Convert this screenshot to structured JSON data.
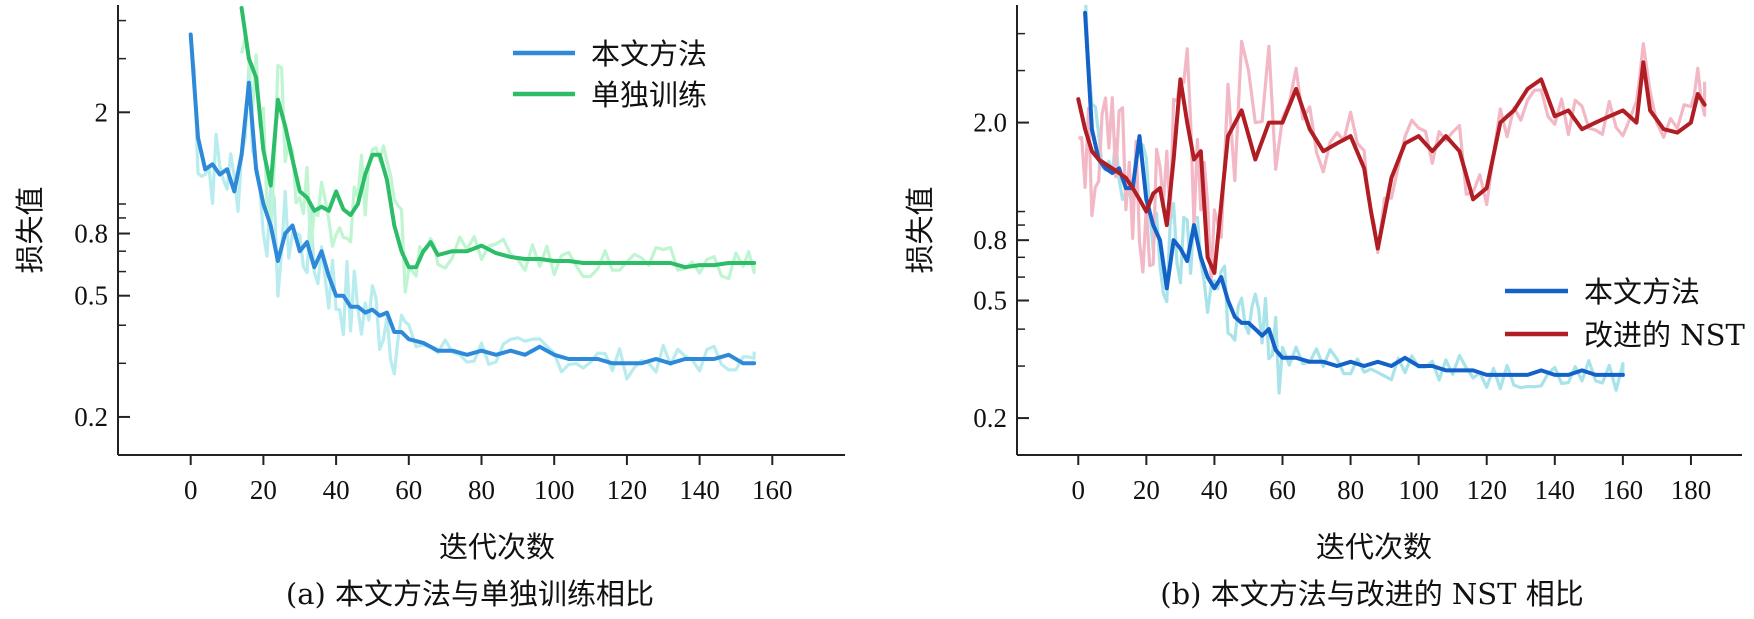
{
  "chart_data": [
    {
      "type": "line",
      "caption": "(a) 本文方法与单独训练相比",
      "xlabel": "迭代次数",
      "ylabel": "损失值",
      "yscale": "log",
      "xlim": [
        -20,
        180
      ],
      "ylim": [
        0.15,
        4.5
      ],
      "xticks": [
        "0",
        "20",
        "40",
        "60",
        "80",
        "100",
        "120",
        "140",
        "160"
      ],
      "xtick_values": [
        0,
        20,
        40,
        60,
        80,
        100,
        120,
        140,
        160
      ],
      "yticks": [
        "0.2",
        "0.5",
        "0.8",
        "2"
      ],
      "ytick_values": [
        0.2,
        0.5,
        0.8,
        2.0
      ],
      "legend_position": "top-right",
      "series": [
        {
          "name": "本文方法",
          "color": "#2e8ad8",
          "raw_color": "#b8ecef",
          "x": [
            0,
            2,
            4,
            6,
            8,
            10,
            12,
            14,
            16,
            18,
            20,
            22,
            24,
            26,
            28,
            30,
            32,
            34,
            36,
            38,
            40,
            42,
            44,
            46,
            48,
            50,
            52,
            54,
            56,
            58,
            60,
            64,
            68,
            72,
            76,
            80,
            84,
            88,
            92,
            96,
            100,
            104,
            108,
            112,
            116,
            120,
            124,
            128,
            132,
            136,
            140,
            144,
            148,
            152,
            155
          ],
          "y": [
            3.6,
            1.65,
            1.3,
            1.35,
            1.25,
            1.3,
            1.1,
            1.45,
            2.5,
            1.3,
            1.0,
            0.85,
            0.65,
            0.8,
            0.85,
            0.7,
            0.75,
            0.62,
            0.7,
            0.58,
            0.5,
            0.5,
            0.46,
            0.46,
            0.44,
            0.45,
            0.43,
            0.44,
            0.38,
            0.38,
            0.36,
            0.35,
            0.33,
            0.33,
            0.32,
            0.33,
            0.32,
            0.33,
            0.32,
            0.34,
            0.32,
            0.31,
            0.31,
            0.31,
            0.3,
            0.3,
            0.3,
            0.31,
            0.3,
            0.31,
            0.31,
            0.31,
            0.32,
            0.3,
            0.3
          ]
        },
        {
          "name": "单独训练",
          "color": "#2dbd68",
          "raw_color": "#bff5d0",
          "x": [
            14,
            16,
            18,
            20,
            22,
            24,
            26,
            28,
            30,
            32,
            34,
            36,
            38,
            40,
            42,
            44,
            46,
            48,
            50,
            52,
            54,
            56,
            58,
            60,
            62,
            64,
            66,
            68,
            72,
            76,
            80,
            84,
            88,
            92,
            96,
            100,
            104,
            108,
            112,
            116,
            120,
            124,
            128,
            132,
            136,
            140,
            144,
            148,
            152,
            155
          ],
          "y": [
            4.4,
            3.0,
            2.6,
            1.5,
            1.15,
            2.2,
            1.8,
            1.4,
            1.1,
            1.05,
            0.95,
            0.98,
            0.95,
            1.1,
            0.96,
            0.92,
            1.0,
            1.25,
            1.45,
            1.45,
            1.2,
            0.85,
            0.7,
            0.62,
            0.62,
            0.7,
            0.75,
            0.68,
            0.7,
            0.7,
            0.73,
            0.69,
            0.67,
            0.66,
            0.66,
            0.65,
            0.65,
            0.64,
            0.64,
            0.64,
            0.64,
            0.64,
            0.64,
            0.64,
            0.62,
            0.63,
            0.63,
            0.64,
            0.64,
            0.64
          ]
        }
      ]
    },
    {
      "type": "line",
      "caption": "(b) 本文方法与改进的 NST 相比",
      "xlabel": "迭代次数",
      "ylabel": "损失值",
      "yscale": "log",
      "xlim": [
        -18,
        195
      ],
      "ylim": [
        0.15,
        5.0
      ],
      "xticks": [
        "0",
        "20",
        "40",
        "60",
        "80",
        "100",
        "120",
        "140",
        "160",
        "180"
      ],
      "xtick_values": [
        0,
        20,
        40,
        60,
        80,
        100,
        120,
        140,
        160,
        180
      ],
      "yticks": [
        "0.2",
        "0.5",
        "0.8",
        "2.0"
      ],
      "ytick_values": [
        0.2,
        0.5,
        0.8,
        2.0
      ],
      "legend_position": "right",
      "series": [
        {
          "name": "本文方法",
          "color": "#1462c8",
          "raw_color": "#a9e3ea",
          "x": [
            2,
            4,
            6,
            8,
            10,
            12,
            14,
            16,
            18,
            20,
            22,
            24,
            26,
            28,
            30,
            32,
            34,
            36,
            38,
            40,
            42,
            44,
            46,
            48,
            50,
            52,
            54,
            56,
            58,
            60,
            64,
            68,
            72,
            76,
            80,
            84,
            88,
            92,
            96,
            100,
            104,
            108,
            112,
            116,
            120,
            124,
            128,
            132,
            136,
            140,
            144,
            148,
            152,
            156,
            160
          ],
          "y": [
            4.7,
            1.9,
            1.5,
            1.4,
            1.35,
            1.4,
            1.2,
            1.2,
            1.8,
            1.1,
            0.9,
            0.8,
            0.55,
            0.8,
            0.75,
            0.68,
            0.9,
            0.7,
            0.6,
            0.55,
            0.6,
            0.5,
            0.44,
            0.42,
            0.42,
            0.4,
            0.38,
            0.4,
            0.34,
            0.32,
            0.32,
            0.31,
            0.31,
            0.3,
            0.31,
            0.3,
            0.31,
            0.3,
            0.32,
            0.3,
            0.3,
            0.29,
            0.29,
            0.29,
            0.28,
            0.28,
            0.28,
            0.28,
            0.29,
            0.28,
            0.28,
            0.29,
            0.28,
            0.28,
            0.28
          ]
        },
        {
          "name": "改进的 NST",
          "color": "#b01e24",
          "raw_color": "#f3b8c6",
          "x": [
            0,
            2,
            4,
            6,
            8,
            10,
            12,
            14,
            16,
            18,
            20,
            22,
            24,
            26,
            28,
            30,
            32,
            34,
            36,
            38,
            40,
            44,
            48,
            52,
            56,
            60,
            64,
            68,
            72,
            76,
            80,
            84,
            86,
            88,
            92,
            96,
            100,
            104,
            108,
            112,
            116,
            120,
            124,
            128,
            132,
            136,
            140,
            144,
            148,
            152,
            156,
            160,
            164,
            166,
            168,
            172,
            176,
            180,
            182,
            184
          ],
          "y": [
            2.4,
            1.9,
            1.6,
            1.5,
            1.45,
            1.4,
            1.35,
            1.3,
            1.2,
            1.1,
            1.0,
            1.15,
            1.2,
            0.9,
            1.5,
            2.8,
            2.0,
            1.5,
            1.6,
            0.7,
            0.62,
            1.8,
            2.2,
            1.5,
            2.0,
            2.0,
            2.6,
            1.9,
            1.6,
            1.7,
            1.8,
            1.4,
            1.0,
            0.75,
            1.3,
            1.7,
            1.8,
            1.6,
            1.8,
            1.6,
            1.1,
            1.2,
            2.0,
            2.2,
            2.6,
            2.8,
            2.1,
            2.2,
            1.9,
            2.0,
            2.1,
            2.2,
            2.0,
            3.2,
            2.2,
            1.9,
            1.85,
            2.0,
            2.5,
            2.3
          ]
        }
      ]
    }
  ]
}
